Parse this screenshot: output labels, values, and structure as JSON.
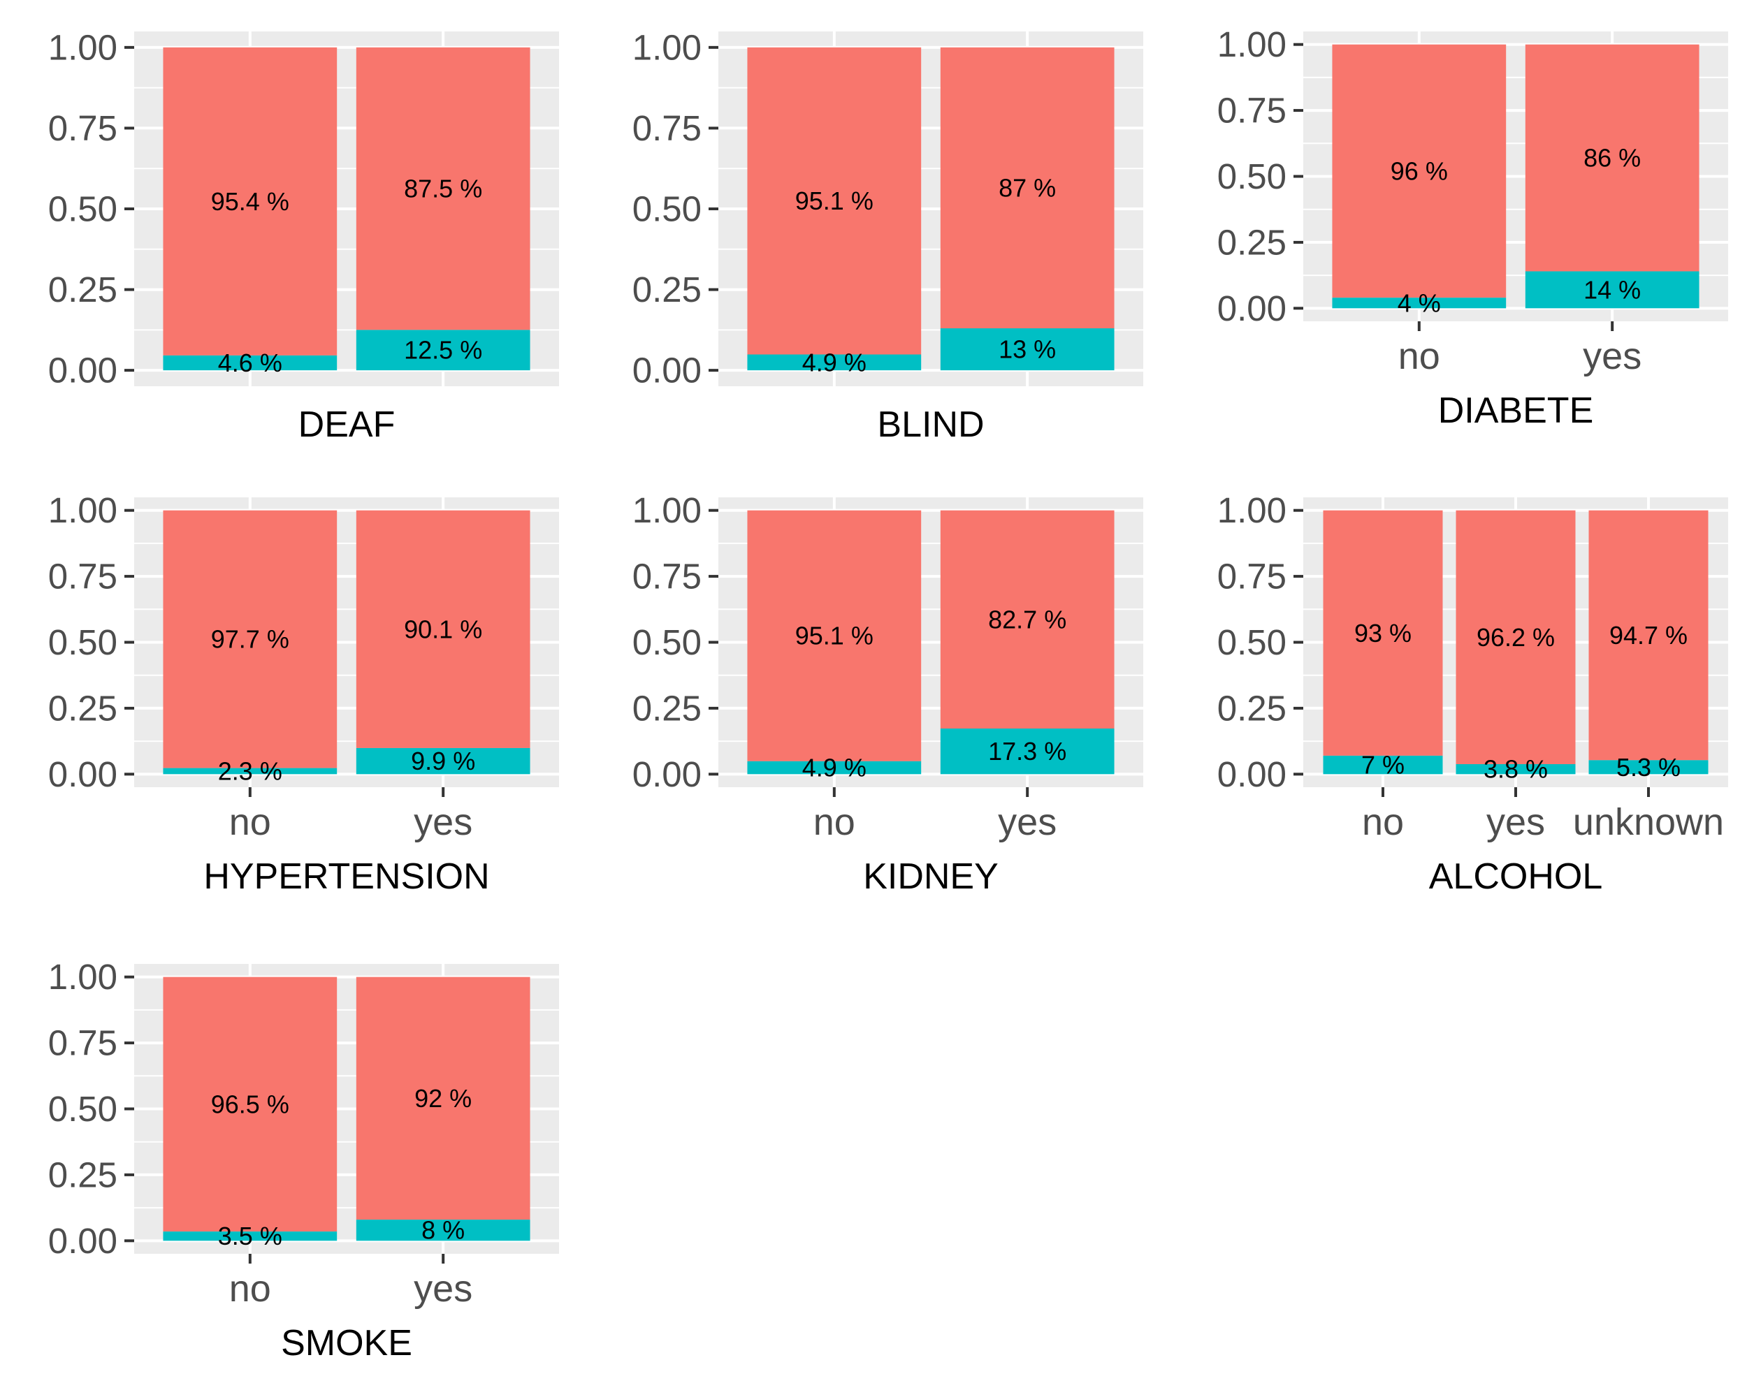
{
  "chart_data": [
    {
      "type": "bar",
      "stacked": true,
      "percent": true,
      "xlabel": "DEAF",
      "x_tick_labels_visible": false,
      "categories": [
        "no",
        "yes"
      ],
      "series": [
        {
          "fill": "#F8766D",
          "values": [
            0.954,
            0.875
          ],
          "labels": [
            "95.4 %",
            "87.5 %"
          ]
        },
        {
          "fill": "#00BFC4",
          "values": [
            0.046,
            0.125
          ],
          "labels": [
            "4.6 %",
            "12.5 %"
          ]
        }
      ],
      "ylim": [
        0,
        1
      ],
      "yticks": [
        "0.00",
        "0.25",
        "0.50",
        "0.75",
        "1.00"
      ],
      "grid": true
    },
    {
      "type": "bar",
      "stacked": true,
      "percent": true,
      "xlabel": "BLIND",
      "x_tick_labels_visible": false,
      "categories": [
        "no",
        "yes"
      ],
      "series": [
        {
          "fill": "#F8766D",
          "values": [
            0.951,
            0.87
          ],
          "labels": [
            "95.1 %",
            "87 %"
          ]
        },
        {
          "fill": "#00BFC4",
          "values": [
            0.049,
            0.13
          ],
          "labels": [
            "4.9 %",
            "13 %"
          ]
        }
      ],
      "ylim": [
        0,
        1
      ],
      "yticks": [
        "0.00",
        "0.25",
        "0.50",
        "0.75",
        "1.00"
      ],
      "grid": true
    },
    {
      "type": "bar",
      "stacked": true,
      "percent": true,
      "xlabel": "DIABETE",
      "x_tick_labels_visible": true,
      "categories": [
        "no",
        "yes"
      ],
      "series": [
        {
          "fill": "#F8766D",
          "values": [
            0.96,
            0.86
          ],
          "labels": [
            "96 %",
            "86 %"
          ]
        },
        {
          "fill": "#00BFC4",
          "values": [
            0.04,
            0.14
          ],
          "labels": [
            "4 %",
            "14 %"
          ]
        }
      ],
      "ylim": [
        0,
        1
      ],
      "yticks": [
        "0.00",
        "0.25",
        "0.50",
        "0.75",
        "1.00"
      ],
      "grid": true
    },
    {
      "type": "bar",
      "stacked": true,
      "percent": true,
      "xlabel": "HYPERTENSION",
      "x_tick_labels_visible": true,
      "categories": [
        "no",
        "yes"
      ],
      "series": [
        {
          "fill": "#F8766D",
          "values": [
            0.977,
            0.901
          ],
          "labels": [
            "97.7 %",
            "90.1 %"
          ]
        },
        {
          "fill": "#00BFC4",
          "values": [
            0.023,
            0.099
          ],
          "labels": [
            "2.3 %",
            "9.9 %"
          ]
        }
      ],
      "ylim": [
        0,
        1
      ],
      "yticks": [
        "0.00",
        "0.25",
        "0.50",
        "0.75",
        "1.00"
      ],
      "grid": true
    },
    {
      "type": "bar",
      "stacked": true,
      "percent": true,
      "xlabel": "KIDNEY",
      "x_tick_labels_visible": true,
      "categories": [
        "no",
        "yes"
      ],
      "series": [
        {
          "fill": "#F8766D",
          "values": [
            0.951,
            0.827
          ],
          "labels": [
            "95.1 %",
            "82.7 %"
          ]
        },
        {
          "fill": "#00BFC4",
          "values": [
            0.049,
            0.173
          ],
          "labels": [
            "4.9 %",
            "17.3 %"
          ]
        }
      ],
      "ylim": [
        0,
        1
      ],
      "yticks": [
        "0.00",
        "0.25",
        "0.50",
        "0.75",
        "1.00"
      ],
      "grid": true
    },
    {
      "type": "bar",
      "stacked": true,
      "percent": true,
      "xlabel": "ALCOHOL",
      "x_tick_labels_visible": true,
      "categories": [
        "no",
        "yes",
        "unknown"
      ],
      "series": [
        {
          "fill": "#F8766D",
          "values": [
            0.93,
            0.962,
            0.947
          ],
          "labels": [
            "93 %",
            "96.2 %",
            "94.7 %"
          ]
        },
        {
          "fill": "#00BFC4",
          "values": [
            0.07,
            0.038,
            0.053
          ],
          "labels": [
            "7 %",
            "3.8 %",
            "5.3 %"
          ]
        }
      ],
      "ylim": [
        0,
        1
      ],
      "yticks": [
        "0.00",
        "0.25",
        "0.50",
        "0.75",
        "1.00"
      ],
      "grid": true
    },
    {
      "type": "bar",
      "stacked": true,
      "percent": true,
      "xlabel": "SMOKE",
      "x_tick_labels_visible": true,
      "categories": [
        "no",
        "yes"
      ],
      "series": [
        {
          "fill": "#F8766D",
          "values": [
            0.965,
            0.92
          ],
          "labels": [
            "96.5 %",
            "92 %"
          ]
        },
        {
          "fill": "#00BFC4",
          "values": [
            0.035,
            0.08
          ],
          "labels": [
            "3.5 %",
            "8 %"
          ]
        }
      ],
      "ylim": [
        0,
        1
      ],
      "yticks": [
        "0.00",
        "0.25",
        "0.50",
        "0.75",
        "1.00"
      ],
      "grid": true
    }
  ],
  "colors": {
    "panel_background": "#EBEBEB",
    "grid": "#FFFFFF",
    "top_segment": "#F8766D",
    "bottom_segment": "#00BFC4",
    "tick_text": "#4D4D4D",
    "axis_ticks": "#333333"
  }
}
